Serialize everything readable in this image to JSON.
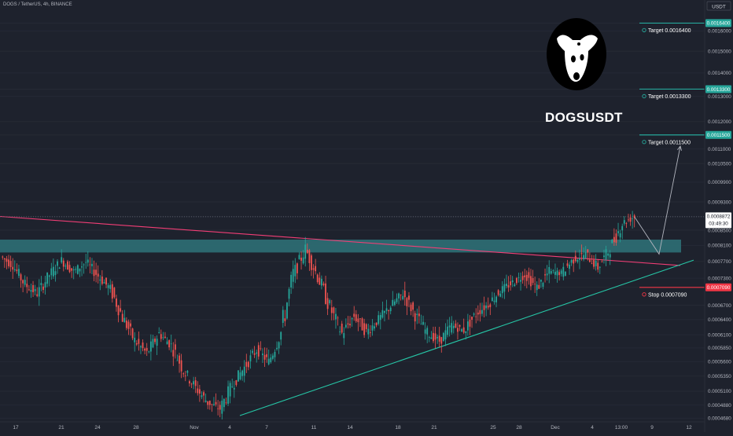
{
  "header": {
    "title": "DOGS / TetherUS, 4h, BINANCE"
  },
  "currency": "USDT",
  "symbol_title": "DOGSUSDT",
  "logo_icon": "dog-head-icon",
  "colors": {
    "background": "#1e222d",
    "up": "#26a69a",
    "down": "#ef5350",
    "resistance_line": "#f23e76",
    "support_line": "#26c6a6",
    "zone": "#2d6c72",
    "target": "#26a69a",
    "stop": "#f23645",
    "price_tag": "#ffffff"
  },
  "chart_data": {
    "type": "candlestick",
    "title": "DOGS / TetherUS, 4h, BINANCE",
    "y_scale": "log",
    "ylim": [
      0.000465,
      0.0017
    ],
    "y_ticks": [
      "0.0016400",
      "0.0016000",
      "0.0015000",
      "0.0014000",
      "0.0013300",
      "0.0013000",
      "0.0012000",
      "0.0011500",
      "0.0011000",
      "0.0010500",
      "0.0009900",
      "0.0009300",
      "0.0008872",
      "0.0008500",
      "0.0008100",
      "0.0007700",
      "0.0007300",
      "0.0007090",
      "0.0006700",
      "0.0006400",
      "0.0006100",
      "0.0005850",
      "0.0005600",
      "0.0005350",
      "0.0005100",
      "0.0004880",
      "0.0004680"
    ],
    "x_ticks": [
      "17",
      "21",
      "24",
      "28",
      "Nov",
      "4",
      "7",
      "11",
      "14",
      "18",
      "21",
      "25",
      "28",
      "Dec",
      "4",
      "13:00",
      "9",
      "12"
    ],
    "current_price": {
      "value": 0.0008872,
      "label": "0.0008872",
      "countdown": "03:49:30"
    },
    "levels": [
      {
        "kind": "target",
        "value": 0.00164,
        "axis_label": "0.0016400",
        "label": "Target 0.0016400"
      },
      {
        "kind": "target",
        "value": 0.00133,
        "axis_label": "0.0013300",
        "label": "Target 0.0013300"
      },
      {
        "kind": "target",
        "value": 0.00115,
        "axis_label": "0.0011500",
        "label": "Target 0.0011500"
      },
      {
        "kind": "stop",
        "value": 0.000709,
        "axis_label": "0.0007090",
        "label": "Stop 0.0007090"
      }
    ],
    "zone": {
      "low": 0.000792,
      "high": 0.000825
    },
    "series": [
      {
        "points": [
          [
            0.000782,
            0.00076
          ],
          [
            0.00076,
            0.000715
          ],
          [
            0.000715,
            0.000695
          ],
          [
            0.000695,
            0.000738
          ],
          [
            0.000738,
            0.000772
          ],
          [
            0.000772,
            0.000745
          ],
          [
            0.000745,
            0.000768
          ],
          [
            0.000768,
            0.000735
          ],
          [
            0.000735,
            0.000705
          ],
          [
            0.000705,
            0.000645
          ],
          [
            0.000645,
            0.000598
          ],
          [
            0.000598,
            0.000575
          ],
          [
            0.000575,
            0.000612
          ],
          [
            0.000612,
            0.00059
          ],
          [
            0.00059,
            0.000545
          ],
          [
            0.000545,
            0.000515
          ],
          [
            0.000515,
            0.000492
          ],
          [
            0.000492,
            0.000482
          ],
          [
            0.000482,
            0.00052
          ],
          [
            0.00052,
            0.00055
          ],
          [
            0.00055,
            0.000582
          ],
          [
            0.000582,
            0.00056
          ],
          [
            0.00056,
            0.000615
          ],
          [
            0.000615,
            0.000738
          ],
          [
            0.000738,
            0.0008
          ],
          [
            0.0008,
            0.000735
          ],
          [
            0.000735,
            0.000665
          ],
          [
            0.000665,
            0.000612
          ],
          [
            0.000612,
            0.000648
          ],
          [
            0.000648,
            0.000615
          ],
          [
            0.000615,
            0.00064
          ],
          [
            0.00064,
            0.000668
          ],
          [
            0.000668,
            0.000695
          ],
          [
            0.000695,
            0.00065
          ],
          [
            0.00065,
            0.000612
          ],
          [
            0.000612,
            0.000598
          ],
          [
            0.000598,
            0.000628
          ],
          [
            0.000628,
            0.000618
          ],
          [
            0.000618,
            0.000652
          ],
          [
            0.000652,
            0.000672
          ],
          [
            0.000672,
            0.000702
          ],
          [
            0.000702,
            0.00072
          ],
          [
            0.00072,
            0.000738
          ],
          [
            0.000738,
            0.000708
          ],
          [
            0.000708,
            0.000745
          ],
          [
            0.000745,
            0.000742
          ],
          [
            0.000742,
            0.000775
          ],
          [
            0.000775,
            0.000788
          ],
          [
            0.000788,
            0.000755
          ],
          [
            0.000755,
            0.000802
          ],
          [
            0.000802,
            0.00087
          ],
          [
            0.00087,
            0.000887
          ]
        ]
      }
    ],
    "annotations": [
      {
        "kind": "descending-trendline",
        "from": [
          0,
          0.000888
        ],
        "to": [
          865,
          0.00076
        ]
      },
      {
        "kind": "ascending-trendline",
        "from": [
          305,
          0.000472
        ],
        "to": [
          882,
          0.000773
        ]
      },
      {
        "kind": "projection-arrow",
        "points": [
          [
            807,
            0.000886
          ],
          [
            838,
            0.000788
          ],
          [
            865,
            0.00111
          ]
        ]
      }
    ]
  }
}
